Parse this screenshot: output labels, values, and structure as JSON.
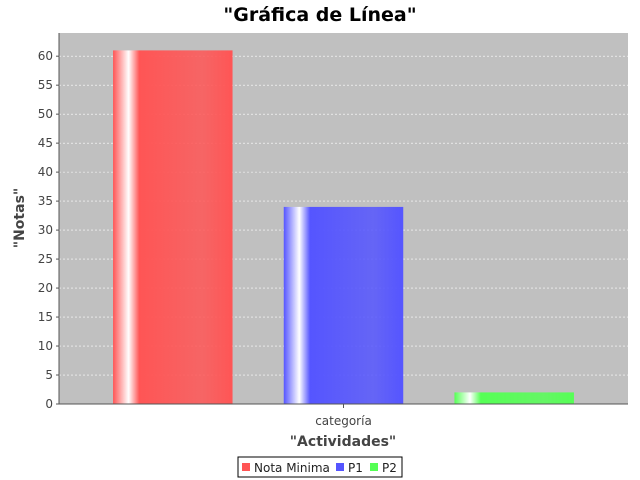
{
  "chart_data": {
    "type": "bar",
    "title": "\"Gráfica de Línea\"",
    "xlabel": "\"Actividades\"",
    "ylabel": "\"Notas\"",
    "categories": [
      "categoría"
    ],
    "ylim": [
      0,
      64
    ],
    "yticks": [
      0,
      5,
      10,
      15,
      20,
      25,
      30,
      35,
      40,
      45,
      50,
      55,
      60
    ],
    "grid": true,
    "legend_position": "bottom",
    "series": [
      {
        "name": "Nota Minima",
        "values": [
          61
        ],
        "color": "#ff5555"
      },
      {
        "name": "P1",
        "values": [
          34
        ],
        "color": "#5555ff"
      },
      {
        "name": "P2",
        "values": [
          2
        ],
        "color": "#55ff55"
      }
    ],
    "plot_background": "#c0c0c0"
  }
}
